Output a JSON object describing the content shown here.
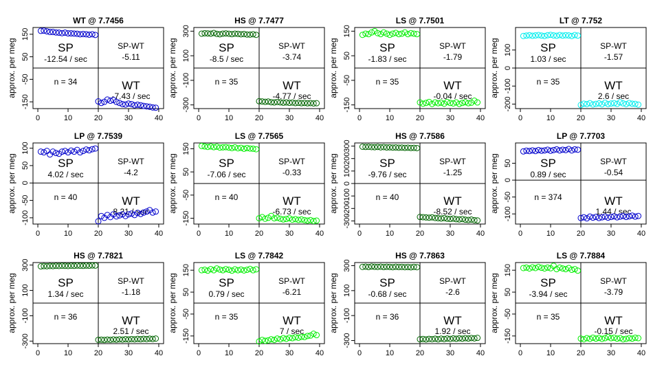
{
  "figure": {
    "colors": {
      "blue": "#0000cc",
      "dark-green": "#006400",
      "green": "#00ee00",
      "cyan": "#00eeee"
    }
  },
  "chart_data": [
    {
      "type": "scatter",
      "title": "WT @ 7.7456",
      "ylabel": "approx. per meg",
      "color": "#0000cc",
      "xlim": [
        0,
        40
      ],
      "ylim": [
        -180,
        180
      ],
      "xticks": [
        0,
        10,
        20,
        30,
        40
      ],
      "yticks": [
        -150,
        -50,
        50,
        150
      ],
      "sp_rate": "-12.54 / sec",
      "diff": "-5.11",
      "wt_rate": "-7.43 / sec",
      "n": "n = 34",
      "sp_values": [
        165,
        166,
        163,
        160,
        160,
        158,
        157,
        155,
        157,
        154,
        154,
        153,
        152,
        150,
        151,
        150,
        148,
        150,
        147
      ],
      "wt_values": [
        -148,
        -155,
        -150,
        -140,
        -145,
        -142,
        -150,
        -155,
        -160,
        -162,
        -158,
        -160,
        -165,
        -163,
        -165,
        -168,
        -170,
        -172,
        -175,
        -176
      ]
    },
    {
      "type": "scatter",
      "title": "HS @ 7.7477",
      "ylabel": "approx. per meg",
      "color": "#006400",
      "xlim": [
        0,
        40
      ],
      "ylim": [
        -330,
        330
      ],
      "xticks": [
        0,
        10,
        20,
        30,
        40
      ],
      "yticks": [
        -300,
        -100,
        100,
        300
      ],
      "sp_rate": "-8.5 / sec",
      "diff": "-3.74",
      "wt_rate": "-4.77 / sec",
      "n": "n = 35",
      "sp_values": [
        280,
        283,
        282,
        280,
        285,
        278,
        275,
        280,
        282,
        279,
        276,
        280,
        278,
        275,
        277,
        273,
        272,
        275,
        270
      ],
      "wt_values": [
        -270,
        -272,
        -275,
        -273,
        -278,
        -280,
        -276,
        -279,
        -282,
        -280,
        -283,
        -281,
        -285,
        -283,
        -286,
        -284,
        -287,
        -285,
        -288,
        -286
      ]
    },
    {
      "type": "scatter",
      "title": "LS @ 7.7501",
      "ylabel": "approx. per meg",
      "color": "#00ee00",
      "xlim": [
        0,
        40
      ],
      "ylim": [
        -165,
        165
      ],
      "xticks": [
        0,
        10,
        20,
        30,
        40
      ],
      "yticks": [
        -150,
        -50,
        50,
        150
      ],
      "sp_rate": "-1.83 / sec",
      "diff": "-1.79",
      "wt_rate": "-0.04 / sec",
      "n": "n = 35",
      "sp_values": [
        135,
        140,
        138,
        145,
        150,
        142,
        138,
        145,
        140,
        135,
        140,
        143,
        138,
        140,
        145,
        138,
        142,
        140,
        138
      ],
      "wt_values": [
        -140,
        -145,
        -142,
        -138,
        -146,
        -140,
        -143,
        -141,
        -145,
        -138,
        -142,
        -144,
        -140,
        -146,
        -142,
        -139,
        -143,
        -141,
        -133,
        -140
      ]
    },
    {
      "type": "scatter",
      "title": "LT @ 7.752",
      "ylabel": "approx. per meg",
      "color": "#00eeee",
      "xlim": [
        0,
        40
      ],
      "ylim": [
        -225,
        225
      ],
      "xticks": [
        0,
        10,
        20,
        30,
        40
      ],
      "yticks": [
        -200,
        -100,
        0,
        100
      ],
      "sp_rate": "1.03 / sec",
      "diff": "-1.57",
      "wt_rate": "2.6 / sec",
      "n": "n = 35",
      "sp_values": [
        178,
        180,
        182,
        179,
        181,
        183,
        180,
        178,
        182,
        184,
        181,
        179,
        183,
        180,
        182,
        181,
        178,
        183,
        180
      ],
      "wt_values": [
        -205,
        -198,
        -200,
        -195,
        -202,
        -199,
        -196,
        -201,
        -193,
        -200,
        -197,
        -195,
        -199,
        -190,
        -196,
        -200,
        -194,
        -198,
        -199,
        -203
      ]
    },
    {
      "type": "scatter",
      "title": "LP @ 7.7539",
      "ylabel": "approx. per meg",
      "color": "#0000cc",
      "xlim": [
        0,
        40
      ],
      "ylim": [
        -118,
        115
      ],
      "xticks": [
        0,
        10,
        20,
        30,
        40
      ],
      "yticks": [
        -100,
        -50,
        0,
        50,
        100
      ],
      "sp_rate": "4.02 / sec",
      "diff": "-4.2",
      "wt_rate": "8.21 / sec",
      "n": "n = 40",
      "sp_values": [
        90,
        88,
        92,
        82,
        90,
        86,
        84,
        90,
        92,
        88,
        93,
        90,
        95,
        88,
        92,
        96,
        94,
        97,
        99
      ],
      "wt_values": [
        -110,
        -95,
        -100,
        -92,
        -98,
        -90,
        -96,
        -93,
        -90,
        -95,
        -90,
        -88,
        -92,
        -86,
        -89,
        -85,
        -82,
        -78,
        -85,
        -82
      ]
    },
    {
      "type": "scatter",
      "title": "LS @ 7.7565",
      "ylabel": "approx. per meg",
      "color": "#00ee00",
      "xlim": [
        0,
        40
      ],
      "ylim": [
        -175,
        175
      ],
      "xticks": [
        0,
        10,
        20,
        30,
        40
      ],
      "yticks": [
        -150,
        -50,
        50,
        150
      ],
      "sp_rate": "-7.06 / sec",
      "diff": "-0.33",
      "wt_rate": "-6.73 / sec",
      "n": "n = 40",
      "sp_values": [
        162,
        160,
        158,
        160,
        157,
        159,
        155,
        156,
        157,
        155,
        153,
        156,
        152,
        154,
        150,
        153,
        151,
        150,
        148
      ],
      "wt_values": [
        -150,
        -145,
        -152,
        -148,
        -140,
        -150,
        -148,
        -152,
        -155,
        -153,
        -150,
        -156,
        -154,
        -157,
        -155,
        -158,
        -160,
        -158,
        -162,
        -160
      ]
    },
    {
      "type": "scatter",
      "title": "HS @ 7.7586",
      "ylabel": "approx. per meg",
      "color": "#006400",
      "xlim": [
        0,
        40
      ],
      "ylim": [
        -325,
        325
      ],
      "xticks": [
        0,
        10,
        20,
        30,
        40
      ],
      "yticks": [
        -300,
        -200,
        -100,
        0,
        100,
        200,
        300
      ],
      "sp_values": [
        295,
        293,
        294,
        292,
        291,
        293,
        290,
        292,
        289,
        290,
        288,
        289,
        287,
        288,
        286,
        287,
        285,
        286,
        284
      ],
      "wt_values": [
        -268,
        -270,
        -272,
        -274,
        -271,
        -276,
        -278,
        -280,
        -277,
        -282,
        -284,
        -281,
        -286,
        -288,
        -285,
        -290,
        -292,
        -289,
        -294,
        -296
      ],
      "sp_rate": "-9.76 / sec",
      "diff": "-1.25",
      "wt_rate": "-8.52 / sec",
      "n": "n = 40"
    },
    {
      "type": "scatter",
      "title": "LP @ 7.7703",
      "ylabel": "approx. per meg",
      "color": "#0000cc",
      "xlim": [
        0,
        40
      ],
      "ylim": [
        -130,
        110
      ],
      "xticks": [
        0,
        10,
        20,
        30,
        40
      ],
      "yticks": [
        -100,
        -50,
        0,
        50
      ],
      "sp_rate": "0.89 / sec",
      "diff": "-0.54",
      "wt_rate": "1.44 / sec",
      "n": "n = 374",
      "sp_values": [
        85,
        87,
        86,
        88,
        86,
        89,
        87,
        88,
        90,
        87,
        89,
        91,
        88,
        90,
        89,
        92,
        88,
        91,
        90
      ],
      "wt_values": [
        -112,
        -110,
        -113,
        -108,
        -111,
        -109,
        -112,
        -110,
        -108,
        -111,
        -109,
        -107,
        -110,
        -108,
        -106,
        -109,
        -107,
        -105,
        -108,
        -106
      ]
    },
    {
      "type": "scatter",
      "title": "HS @ 7.7821",
      "ylabel": "approx. per meg",
      "color": "#006400",
      "xlim": [
        0,
        40
      ],
      "ylim": [
        -320,
        320
      ],
      "xticks": [
        0,
        10,
        20,
        30,
        40
      ],
      "yticks": [
        -300,
        -100,
        100,
        300
      ],
      "sp_rate": "1.34 / sec",
      "diff": "-1.18",
      "wt_rate": "2.51 / sec",
      "n": "n = 36",
      "sp_values": [
        290,
        292,
        291,
        293,
        292,
        294,
        293,
        295,
        294,
        293,
        295,
        294,
        296,
        295,
        294,
        296,
        295,
        297,
        296
      ],
      "wt_values": [
        -290,
        -289,
        -291,
        -288,
        -290,
        -287,
        -289,
        -286,
        -288,
        -285,
        -287,
        -284,
        -286,
        -283,
        -285,
        -282,
        -284,
        -281,
        -283,
        -280
      ]
    },
    {
      "type": "scatter",
      "title": "LS @ 7.7842",
      "ylabel": "approx. per meg",
      "color": "#00ee00",
      "xlim": [
        0,
        40
      ],
      "ylim": [
        -185,
        185
      ],
      "xticks": [
        0,
        10,
        20,
        30,
        40
      ],
      "yticks": [
        -150,
        -50,
        50,
        150
      ],
      "sp_rate": "0.79 / sec",
      "diff": "-6.21",
      "wt_rate": "7 / sec",
      "n": "n = 35",
      "sp_values": [
        150,
        152,
        148,
        155,
        150,
        158,
        153,
        150,
        155,
        152,
        148,
        154,
        150,
        153,
        149,
        152,
        156,
        150,
        154
      ],
      "wt_values": [
        -175,
        -168,
        -172,
        -170,
        -165,
        -168,
        -162,
        -165,
        -160,
        -163,
        -158,
        -160,
        -156,
        -158,
        -154,
        -155,
        -150,
        -148,
        -140,
        -146
      ]
    },
    {
      "type": "scatter",
      "title": "HS @ 7.7863",
      "ylabel": "approx. per meg",
      "color": "#006400",
      "xlim": [
        0,
        40
      ],
      "ylim": [
        -325,
        325
      ],
      "xticks": [
        0,
        10,
        20,
        30,
        40
      ],
      "yticks": [
        -300,
        -100,
        100,
        300
      ],
      "sp_rate": "-0.68 / sec",
      "diff": "-2.6",
      "wt_rate": "1.92 / sec",
      "n": "n = 36",
      "sp_values": [
        290,
        292,
        289,
        293,
        291,
        290,
        292,
        289,
        291,
        290,
        288,
        291,
        289,
        290,
        288,
        289,
        287,
        290,
        288
      ],
      "wt_values": [
        -290,
        -288,
        -291,
        -287,
        -289,
        -286,
        -290,
        -285,
        -288,
        -284,
        -287,
        -283,
        -286,
        -282,
        -285,
        -281,
        -284,
        -280,
        -283,
        -279
      ]
    },
    {
      "type": "scatter",
      "title": "LS @ 7.7884",
      "ylabel": "approx. per meg",
      "color": "#00ee00",
      "xlim": [
        0,
        40
      ],
      "ylim": [
        -185,
        185
      ],
      "xticks": [
        0,
        10,
        20,
        30,
        40
      ],
      "yticks": [
        -150,
        -50,
        50,
        150
      ],
      "sp_rate": "-3.94 / sec",
      "diff": "-3.79",
      "wt_rate": "-0.15 / sec",
      "n": "n = 35",
      "sp_values": [
        160,
        162,
        158,
        163,
        160,
        165,
        161,
        158,
        162,
        159,
        170,
        155,
        162,
        158,
        155,
        160,
        152,
        155,
        148
      ],
      "wt_values": [
        -162,
        -165,
        -160,
        -163,
        -158,
        -162,
        -159,
        -163,
        -160,
        -155,
        -160,
        -158,
        -162,
        -160,
        -165,
        -163,
        -160,
        -162,
        -158,
        -160
      ]
    }
  ]
}
